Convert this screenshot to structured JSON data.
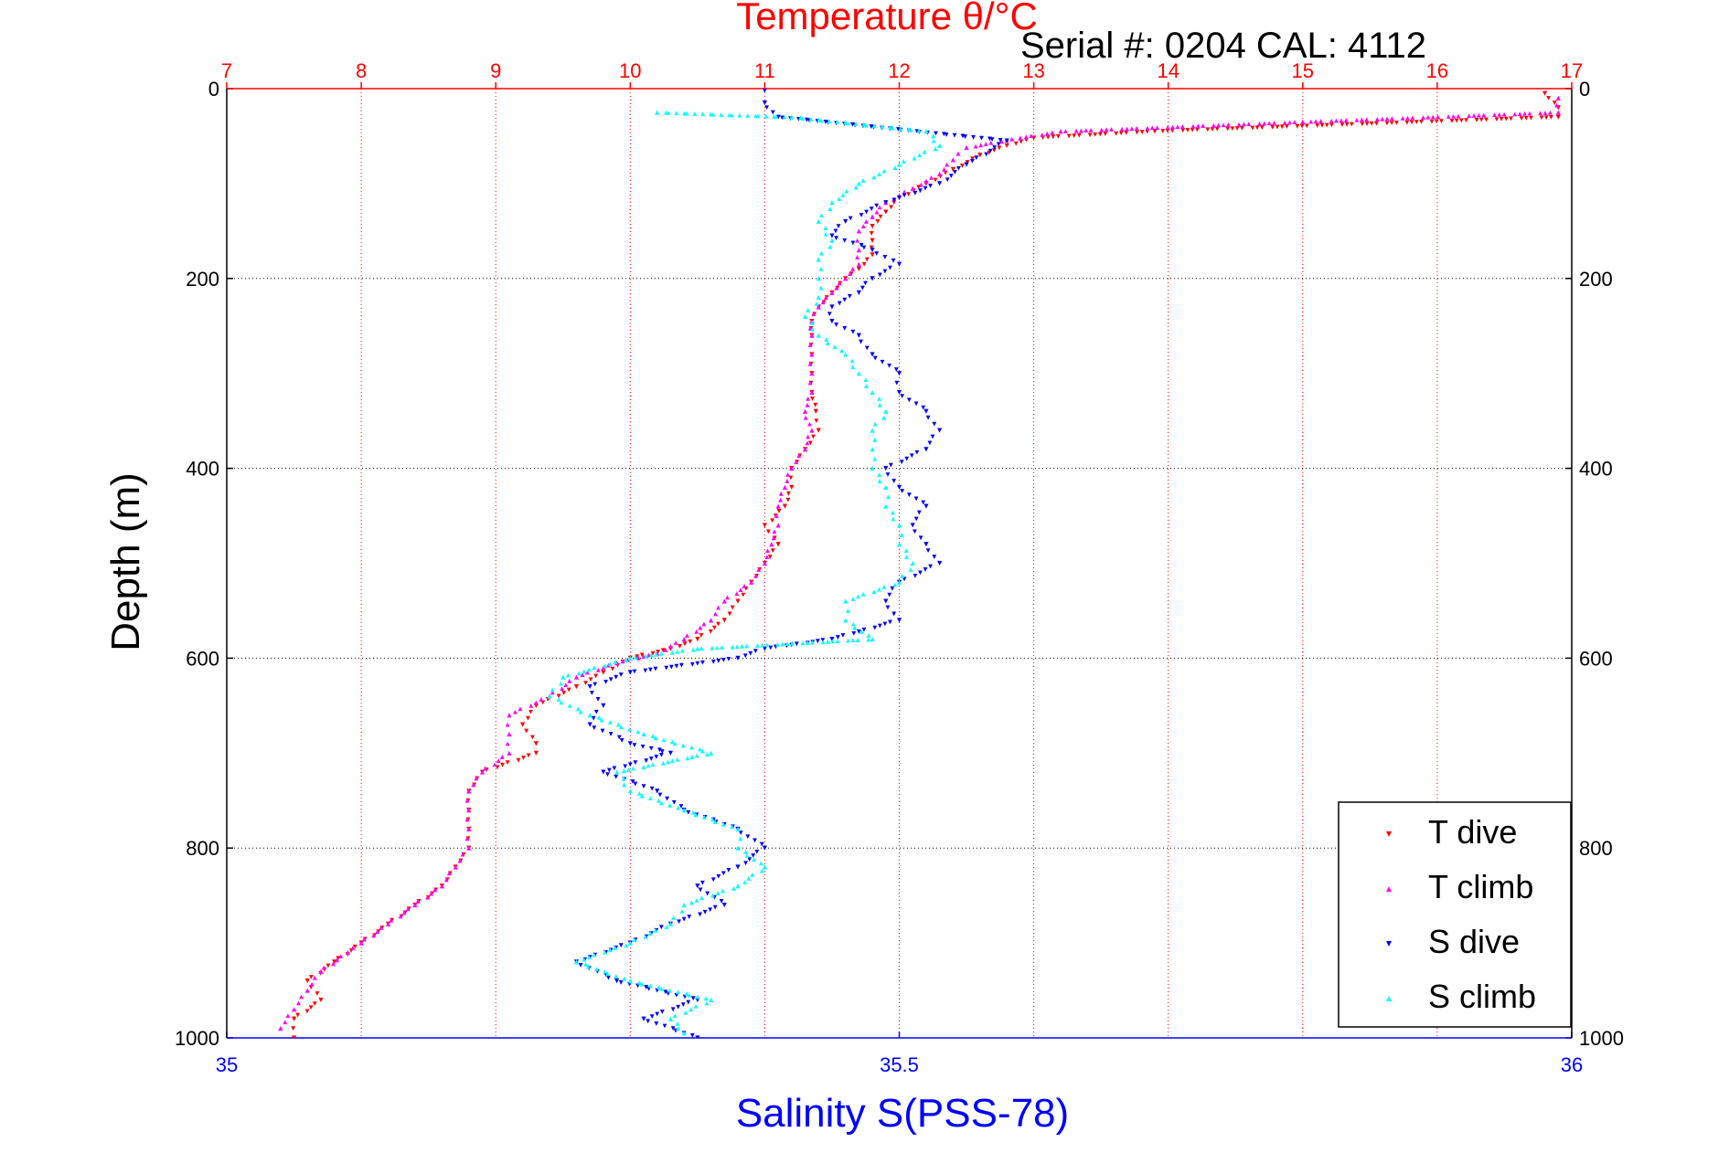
{
  "chart_data": {
    "type": "scatter",
    "title": "Temperature θ/°C",
    "subtitle": "Serial #: 0204  CAL: 4112",
    "ylabel": "Depth (m)",
    "xlabel": "Salinity S(PSS-78)",
    "x_temperature": {
      "label": "Temperature θ/°C",
      "lim": [
        7,
        17
      ],
      "ticks": [
        "7",
        "8",
        "9",
        "10",
        "11",
        "12",
        "13",
        "14",
        "15",
        "16",
        "17"
      ]
    },
    "x_salinity": {
      "label": "Salinity S(PSS-78)",
      "lim": [
        35,
        36
      ],
      "ticks": [
        "35",
        "35.5",
        "36"
      ]
    },
    "y_depth": {
      "label": "Depth (m)",
      "lim": [
        0,
        1000
      ],
      "inverted": true,
      "ticks": [
        "0",
        "200",
        "400",
        "600",
        "800",
        "1000"
      ]
    },
    "grid": true,
    "legend_position": "bottom-right",
    "series": [
      {
        "name": "T dive",
        "axis": "temperature",
        "color": "#ff0000",
        "marker": "triangle-down",
        "points": [
          [
            16.8,
            5
          ],
          [
            16.9,
            20
          ],
          [
            16.9,
            30
          ],
          [
            13.9,
            45
          ],
          [
            13.0,
            52
          ],
          [
            12.8,
            60
          ],
          [
            12.6,
            70
          ],
          [
            12.4,
            85
          ],
          [
            12.2,
            100
          ],
          [
            12.0,
            115
          ],
          [
            11.9,
            130
          ],
          [
            11.8,
            145
          ],
          [
            11.8,
            160
          ],
          [
            11.8,
            175
          ],
          [
            11.7,
            190
          ],
          [
            11.6,
            200
          ],
          [
            11.5,
            215
          ],
          [
            11.4,
            230
          ],
          [
            11.35,
            245
          ],
          [
            11.35,
            260
          ],
          [
            11.35,
            280
          ],
          [
            11.35,
            300
          ],
          [
            11.35,
            320
          ],
          [
            11.38,
            340
          ],
          [
            11.4,
            360
          ],
          [
            11.3,
            380
          ],
          [
            11.2,
            400
          ],
          [
            11.2,
            420
          ],
          [
            11.15,
            440
          ],
          [
            11.0,
            460
          ],
          [
            11.1,
            480
          ],
          [
            11.0,
            500
          ],
          [
            10.9,
            520
          ],
          [
            10.8,
            540
          ],
          [
            10.7,
            560
          ],
          [
            10.5,
            580
          ],
          [
            10.3,
            590
          ],
          [
            10.0,
            600
          ],
          [
            9.8,
            615
          ],
          [
            9.6,
            630
          ],
          [
            9.3,
            650
          ],
          [
            9.2,
            670
          ],
          [
            9.3,
            690
          ],
          [
            9.3,
            700
          ],
          [
            8.9,
            720
          ],
          [
            8.8,
            740
          ],
          [
            8.8,
            760
          ],
          [
            8.8,
            780
          ],
          [
            8.8,
            800
          ],
          [
            8.7,
            820
          ],
          [
            8.6,
            840
          ],
          [
            8.4,
            860
          ],
          [
            8.2,
            880
          ],
          [
            8.0,
            900
          ],
          [
            7.8,
            920
          ],
          [
            7.6,
            940
          ],
          [
            7.7,
            960
          ],
          [
            7.5,
            980
          ],
          [
            7.5,
            1000
          ]
        ]
      },
      {
        "name": "T climb",
        "axis": "temperature",
        "color": "#ff00ff",
        "marker": "triangle-up",
        "points": [
          [
            16.9,
            10
          ],
          [
            16.9,
            25
          ],
          [
            15.0,
            35
          ],
          [
            13.2,
            45
          ],
          [
            12.9,
            52
          ],
          [
            12.5,
            62
          ],
          [
            12.4,
            75
          ],
          [
            12.3,
            90
          ],
          [
            12.1,
            105
          ],
          [
            11.9,
            120
          ],
          [
            11.8,
            135
          ],
          [
            11.7,
            150
          ],
          [
            11.7,
            170
          ],
          [
            11.7,
            185
          ],
          [
            11.6,
            200
          ],
          [
            11.5,
            215
          ],
          [
            11.4,
            230
          ],
          [
            11.35,
            245
          ],
          [
            11.35,
            260
          ],
          [
            11.35,
            280
          ],
          [
            11.35,
            300
          ],
          [
            11.35,
            320
          ],
          [
            11.3,
            340
          ],
          [
            11.35,
            360
          ],
          [
            11.3,
            380
          ],
          [
            11.2,
            400
          ],
          [
            11.15,
            420
          ],
          [
            11.1,
            440
          ],
          [
            11.1,
            460
          ],
          [
            11.05,
            480
          ],
          [
            11.0,
            500
          ],
          [
            10.9,
            520
          ],
          [
            10.7,
            540
          ],
          [
            10.6,
            560
          ],
          [
            10.4,
            580
          ],
          [
            10.2,
            595
          ],
          [
            9.9,
            605
          ],
          [
            9.6,
            620
          ],
          [
            9.4,
            640
          ],
          [
            9.1,
            660
          ],
          [
            9.1,
            680
          ],
          [
            9.1,
            700
          ],
          [
            8.9,
            720
          ],
          [
            8.8,
            740
          ],
          [
            8.8,
            760
          ],
          [
            8.8,
            780
          ],
          [
            8.8,
            800
          ],
          [
            8.7,
            820
          ],
          [
            8.6,
            840
          ],
          [
            8.4,
            860
          ],
          [
            8.2,
            880
          ],
          [
            8.0,
            900
          ],
          [
            7.9,
            910
          ],
          [
            7.7,
            930
          ],
          [
            7.6,
            950
          ],
          [
            7.5,
            970
          ],
          [
            7.4,
            990
          ]
        ]
      },
      {
        "name": "S dive",
        "axis": "salinity",
        "color": "#0000ff",
        "marker": "triangle-down",
        "points": [
          [
            35.4,
            2
          ],
          [
            35.4,
            15
          ],
          [
            35.41,
            30
          ],
          [
            35.58,
            55
          ],
          [
            35.55,
            80
          ],
          [
            35.53,
            100
          ],
          [
            35.49,
            120
          ],
          [
            35.46,
            140
          ],
          [
            35.45,
            155
          ],
          [
            35.48,
            170
          ],
          [
            35.5,
            185
          ],
          [
            35.48,
            200
          ],
          [
            35.47,
            215
          ],
          [
            35.45,
            230
          ],
          [
            35.45,
            245
          ],
          [
            35.47,
            260
          ],
          [
            35.48,
            280
          ],
          [
            35.5,
            300
          ],
          [
            35.5,
            320
          ],
          [
            35.52,
            340
          ],
          [
            35.53,
            360
          ],
          [
            35.52,
            380
          ],
          [
            35.49,
            400
          ],
          [
            35.5,
            420
          ],
          [
            35.52,
            440
          ],
          [
            35.51,
            460
          ],
          [
            35.52,
            480
          ],
          [
            35.53,
            500
          ],
          [
            35.5,
            520
          ],
          [
            35.49,
            540
          ],
          [
            35.5,
            560
          ],
          [
            35.45,
            580
          ],
          [
            35.4,
            590
          ],
          [
            35.38,
            600
          ],
          [
            35.3,
            615
          ],
          [
            35.27,
            630
          ],
          [
            35.28,
            650
          ],
          [
            35.27,
            670
          ],
          [
            35.3,
            690
          ],
          [
            35.33,
            700
          ],
          [
            35.28,
            720
          ],
          [
            35.32,
            740
          ],
          [
            35.34,
            760
          ],
          [
            35.38,
            780
          ],
          [
            35.4,
            800
          ],
          [
            35.38,
            820
          ],
          [
            35.35,
            840
          ],
          [
            35.37,
            860
          ],
          [
            35.33,
            880
          ],
          [
            35.3,
            900
          ],
          [
            35.26,
            920
          ],
          [
            35.29,
            940
          ],
          [
            35.35,
            960
          ],
          [
            35.31,
            980
          ],
          [
            35.35,
            1000
          ]
        ]
      },
      {
        "name": "S climb",
        "axis": "salinity",
        "color": "#00ffff",
        "marker": "triangle-up",
        "points": [
          [
            35.32,
            25
          ],
          [
            35.42,
            30
          ],
          [
            35.52,
            45
          ],
          [
            35.53,
            60
          ],
          [
            35.5,
            80
          ],
          [
            35.47,
            100
          ],
          [
            35.45,
            120
          ],
          [
            35.44,
            140
          ],
          [
            35.45,
            160
          ],
          [
            35.44,
            180
          ],
          [
            35.44,
            200
          ],
          [
            35.44,
            220
          ],
          [
            35.43,
            240
          ],
          [
            35.44,
            260
          ],
          [
            35.46,
            280
          ],
          [
            35.47,
            300
          ],
          [
            35.48,
            320
          ],
          [
            35.49,
            340
          ],
          [
            35.48,
            360
          ],
          [
            35.48,
            380
          ],
          [
            35.48,
            400
          ],
          [
            35.49,
            420
          ],
          [
            35.49,
            440
          ],
          [
            35.5,
            460
          ],
          [
            35.5,
            480
          ],
          [
            35.51,
            500
          ],
          [
            35.5,
            520
          ],
          [
            35.46,
            540
          ],
          [
            35.46,
            560
          ],
          [
            35.48,
            580
          ],
          [
            35.35,
            590
          ],
          [
            35.3,
            600
          ],
          [
            35.25,
            620
          ],
          [
            35.24,
            640
          ],
          [
            35.27,
            660
          ],
          [
            35.31,
            680
          ],
          [
            35.36,
            700
          ],
          [
            35.29,
            720
          ],
          [
            35.3,
            740
          ],
          [
            35.34,
            760
          ],
          [
            35.38,
            780
          ],
          [
            35.38,
            800
          ],
          [
            35.4,
            820
          ],
          [
            35.38,
            840
          ],
          [
            35.34,
            860
          ],
          [
            35.33,
            880
          ],
          [
            35.3,
            900
          ],
          [
            35.26,
            920
          ],
          [
            35.3,
            940
          ],
          [
            35.36,
            960
          ],
          [
            35.33,
            980
          ],
          [
            35.34,
            995
          ]
        ]
      }
    ]
  }
}
